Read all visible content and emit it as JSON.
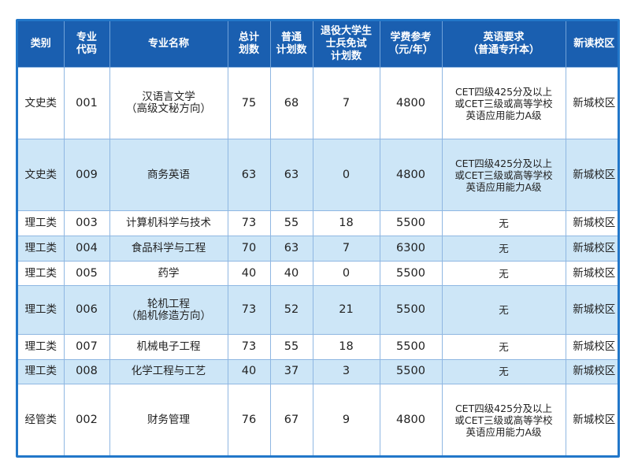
{
  "headers": {
    "category": "类别",
    "code": [
      "专业",
      "代码"
    ],
    "name": "专业名称",
    "total": [
      "总计",
      "划数"
    ],
    "general": [
      "普通",
      "计划数"
    ],
    "veteran": [
      "退役大学生",
      "士兵免试",
      "计划数"
    ],
    "tuition": [
      "学费参考",
      "（元/年）"
    ],
    "english": [
      "英语要求",
      "（普通专升本）"
    ],
    "campus": "新读校区"
  },
  "rows": [
    {
      "category": "文史类",
      "code": "001",
      "name": [
        "汉语言文学",
        "（高级文秘方向）"
      ],
      "total": "75",
      "general": "68",
      "veteran": "7",
      "tuition": "4800",
      "english": [
        "CET四级425分及以上",
        "或CET三级或高等学校",
        "英语应用能力A级"
      ],
      "campus": "新城校区"
    },
    {
      "category": "文史类",
      "code": "009",
      "name": [
        "商务英语"
      ],
      "total": "63",
      "general": "63",
      "veteran": "0",
      "tuition": "4800",
      "english": [
        "CET四级425分及以上",
        "或CET三级或高等学校",
        "英语应用能力A级"
      ],
      "campus": "新城校区"
    },
    {
      "category": "理工类",
      "code": "003",
      "name": [
        "计算机科学与技术"
      ],
      "total": "73",
      "general": "55",
      "veteran": "18",
      "tuition": "5500",
      "english": [
        "无"
      ],
      "campus": "新城校区"
    },
    {
      "category": "理工类",
      "code": "004",
      "name": [
        "食品科学与工程"
      ],
      "total": "70",
      "general": "63",
      "veteran": "7",
      "tuition": "6300",
      "english": [
        "无"
      ],
      "campus": "新城校区"
    },
    {
      "category": "理工类",
      "code": "005",
      "name": [
        "药学"
      ],
      "total": "40",
      "general": "40",
      "veteran": "0",
      "tuition": "5500",
      "english": [
        "无"
      ],
      "campus": "新城校区"
    },
    {
      "category": "理工类",
      "code": "006",
      "name": [
        "轮机工程",
        "（船机修造方向）"
      ],
      "total": "73",
      "general": "52",
      "veteran": "21",
      "tuition": "5500",
      "english": [
        "无"
      ],
      "campus": "新城校区"
    },
    {
      "category": "理工类",
      "code": "007",
      "name": [
        "机械电子工程"
      ],
      "total": "73",
      "general": "55",
      "veteran": "18",
      "tuition": "5500",
      "english": [
        "无"
      ],
      "campus": "新城校区"
    },
    {
      "category": "理工类",
      "code": "008",
      "name": [
        "化学工程与工艺"
      ],
      "total": "40",
      "general": "37",
      "veteran": "3",
      "tuition": "5500",
      "english": [
        "无"
      ],
      "campus": "新城校区"
    },
    {
      "category": "经管类",
      "code": "002",
      "name": [
        "财务管理"
      ],
      "total": "76",
      "general": "67",
      "veteran": "9",
      "tuition": "4800",
      "english": [
        "CET四级425分及以上",
        "或CET三级或高等学校",
        "英语应用能力A级"
      ],
      "campus": "新城校区"
    }
  ],
  "colors": {
    "header_bg": "#1a5fb0",
    "stripe": "#cde6f7",
    "border": "#2277c9"
  }
}
